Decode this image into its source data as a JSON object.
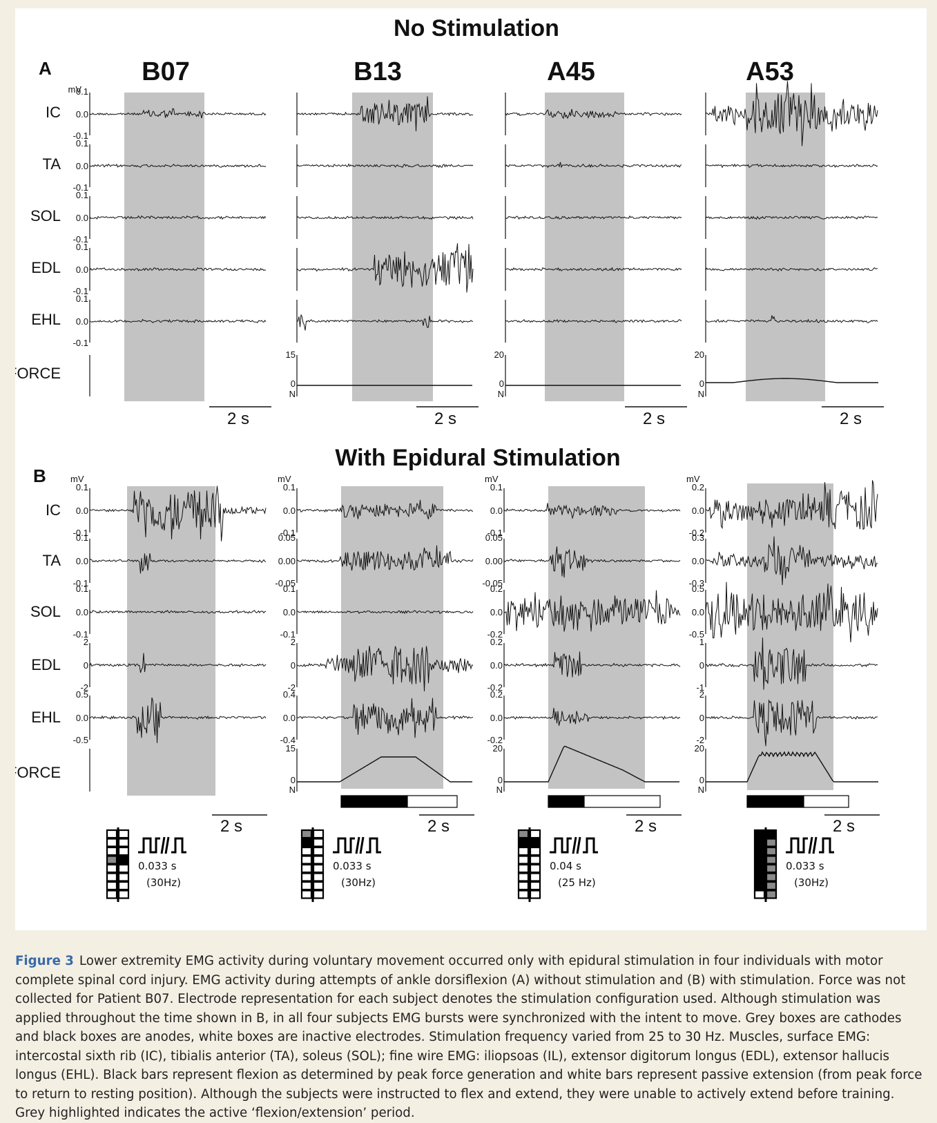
{
  "figure": {
    "title_a": "No Stimulation",
    "title_b": "With Epidural Stimulation",
    "panel_a_label": "A",
    "panel_b_label": "B",
    "unit_mv": "mV",
    "unit_n": "N",
    "scale_bar": "2 s",
    "subjects": [
      "B07",
      "B13",
      "A45",
      "A53"
    ],
    "muscles": [
      "IC",
      "TA",
      "SOL",
      "EDL",
      "EHL",
      "FORCE"
    ],
    "panel_a_ticks": {
      "emg": [
        "0.1",
        "0.0",
        "-0.1"
      ],
      "force": [
        null,
        [
          "15",
          "0"
        ],
        [
          "20",
          "0"
        ],
        [
          "20",
          "0"
        ]
      ]
    },
    "panel_b_ticks": [
      [
        [
          "0.1",
          "0.0",
          "-0.1"
        ],
        [
          "0.1",
          "0.0",
          "-0.1"
        ],
        [
          "0.1",
          "0.0",
          "-0.1"
        ],
        [
          "2",
          "0",
          "-2"
        ],
        [
          "0.5",
          "0.0",
          "-0.5"
        ],
        null
      ],
      [
        [
          "0.1",
          "0.0",
          "-0.1"
        ],
        [
          "0.05",
          "0.00",
          "-0.05"
        ],
        [
          "0.1",
          "0.0",
          "-0.1"
        ],
        [
          "2",
          "0",
          "-2"
        ],
        [
          "0.4",
          "0.0",
          "-0.4"
        ],
        [
          "15",
          "0"
        ]
      ],
      [
        [
          "0.1",
          "0.0",
          "-0.1"
        ],
        [
          "0.05",
          "0.00",
          "-0.05"
        ],
        [
          "0.2",
          "0.0",
          "-0.2"
        ],
        [
          "0.2",
          "0.0",
          "-0.2"
        ],
        [
          "0.2",
          "0.0",
          "-0.2"
        ],
        [
          "20",
          "0"
        ]
      ],
      [
        [
          "0.2",
          "0.0",
          "-0.2"
        ],
        [
          "0.3",
          "0.0",
          "-0.3"
        ],
        [
          "0.5",
          "0.0",
          "-0.5"
        ],
        [
          "1",
          "0",
          "-1"
        ],
        [
          "2",
          "0",
          "-2"
        ],
        [
          "20",
          "0"
        ]
      ]
    ],
    "stimulation": [
      {
        "period": "0.033 s",
        "freq": "(30Hz)"
      },
      {
        "period": "0.033 s",
        "freq": "(30Hz)"
      },
      {
        "period": "0.04 s",
        "freq": "(25 Hz)"
      },
      {
        "period": "0.033 s",
        "freq": "(30Hz)"
      }
    ],
    "electrode_grids": [
      [
        "w",
        "w",
        "w",
        "w",
        "w",
        "w",
        "g",
        "k",
        "w",
        "w",
        "w",
        "w",
        "w",
        "w",
        "w",
        "w"
      ],
      [
        "g",
        "w",
        "k",
        "w",
        "w",
        "w",
        "w",
        "w",
        "w",
        "w",
        "w",
        "w",
        "w",
        "w",
        "w",
        "w"
      ],
      [
        "g",
        "w",
        "k",
        "k",
        "w",
        "w",
        "w",
        "w",
        "w",
        "w",
        "w",
        "w",
        "w",
        "w",
        "w",
        "w"
      ],
      [
        "k",
        "k",
        "k",
        "g",
        "k",
        "g",
        "k",
        "g",
        "k",
        "g",
        "k",
        "g",
        "k",
        "g",
        "w",
        "g"
      ]
    ],
    "colors": {
      "highlight": "#c3c3c3",
      "cathode": "#8a8a8a",
      "anode": "#000000",
      "inactive": "#ffffff",
      "caption_accent": "#3a6aa8"
    }
  },
  "caption": {
    "label": "Figure 3",
    "text": "Lower extremity EMG activity during voluntary movement occurred only with epidural stimulation in four individuals with motor complete spinal cord injury. EMG activity during attempts of ankle dorsiflexion (A) without stimulation and (B) with stimulation. Force was not collected for Patient B07. Electrode representation for each subject denotes the stimulation configuration used. Although stimulation was applied throughout the time shown in B, in all four subjects EMG bursts were synchronized with the intent to move. Grey boxes are cathodes and black boxes are anodes, white boxes are inactive electrodes. Stimulation frequency varied from 25 to 30 Hz. Muscles, surface EMG: intercostal sixth rib (IC), tibialis anterior (TA), soleus (SOL); fine wire EMG: iliopsoas (IL), extensor digitorum longus (EDL), extensor hallucis longus (EHL). Black bars represent flexion as determined by peak force generation and white bars represent passive extension (from peak force to return to resting position). Although the subjects were instructed to flex and extend, they were unable to actively extend before training. Grey highlighted indicates the active ‘flexion/extension’ period."
  }
}
